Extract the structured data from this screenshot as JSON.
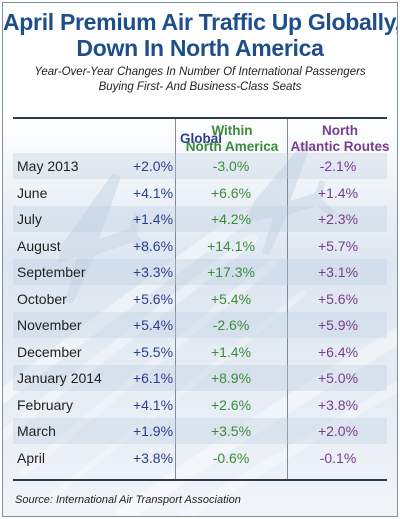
{
  "title_lines": [
    "April Premium Air Traffic Up Globally,",
    "Down In North America"
  ],
  "subtitle_lines": [
    "Year-Over-Year Changes In Number Of International Passengers",
    "Buying First- And Business-Class Seats"
  ],
  "source": "Source: International Air Transport Association",
  "colors": {
    "title": "#1e4f8a",
    "global": "#2a3f8f",
    "within_na": "#3e8a3a",
    "north_atlantic": "#7a3c8e"
  },
  "chart_data": {
    "type": "table",
    "title": "April Premium Air Traffic Up Globally, Down In North America",
    "subtitle": "Year-Over-Year Changes In Number Of International Passengers Buying First- And Business-Class Seats",
    "columns": [
      {
        "lines": [
          "Global"
        ],
        "color": "#2a3f8f"
      },
      {
        "lines": [
          "Within",
          "North America"
        ],
        "color": "#3e8a3a"
      },
      {
        "lines": [
          "North",
          "Atlantic Routes"
        ],
        "color": "#7a3c8e"
      }
    ],
    "rows": [
      {
        "label": "May 2013",
        "values": [
          "+2.0%",
          "-3.0%",
          "-2.1%"
        ]
      },
      {
        "label": "June",
        "values": [
          "+4.1%",
          "+6.6%",
          "+1.4%"
        ]
      },
      {
        "label": "July",
        "values": [
          "+1.4%",
          "+4.2%",
          "+2.3%"
        ]
      },
      {
        "label": "August",
        "values": [
          "+8.6%",
          "+14.1%",
          "+5.7%"
        ]
      },
      {
        "label": "September",
        "values": [
          "+3.3%",
          "+17.3%",
          "+3.1%"
        ]
      },
      {
        "label": "October",
        "values": [
          "+5.6%",
          "+5.4%",
          "+5.6%"
        ]
      },
      {
        "label": "November",
        "values": [
          "+5.4%",
          "-2.6%",
          "+5.9%"
        ]
      },
      {
        "label": "December",
        "values": [
          "+5.5%",
          "+1.4%",
          "+6.4%"
        ]
      },
      {
        "label": "January 2014",
        "values": [
          "+6.1%",
          "+8.9%",
          "+5.0%"
        ]
      },
      {
        "label": "February",
        "values": [
          "+4.1%",
          "+2.6%",
          "+3.8%"
        ]
      },
      {
        "label": "March",
        "values": [
          "+1.9%",
          "+3.5%",
          "+2.0%"
        ]
      },
      {
        "label": "April",
        "values": [
          "+3.8%",
          "-0.6%",
          "-0.1%"
        ]
      }
    ]
  }
}
